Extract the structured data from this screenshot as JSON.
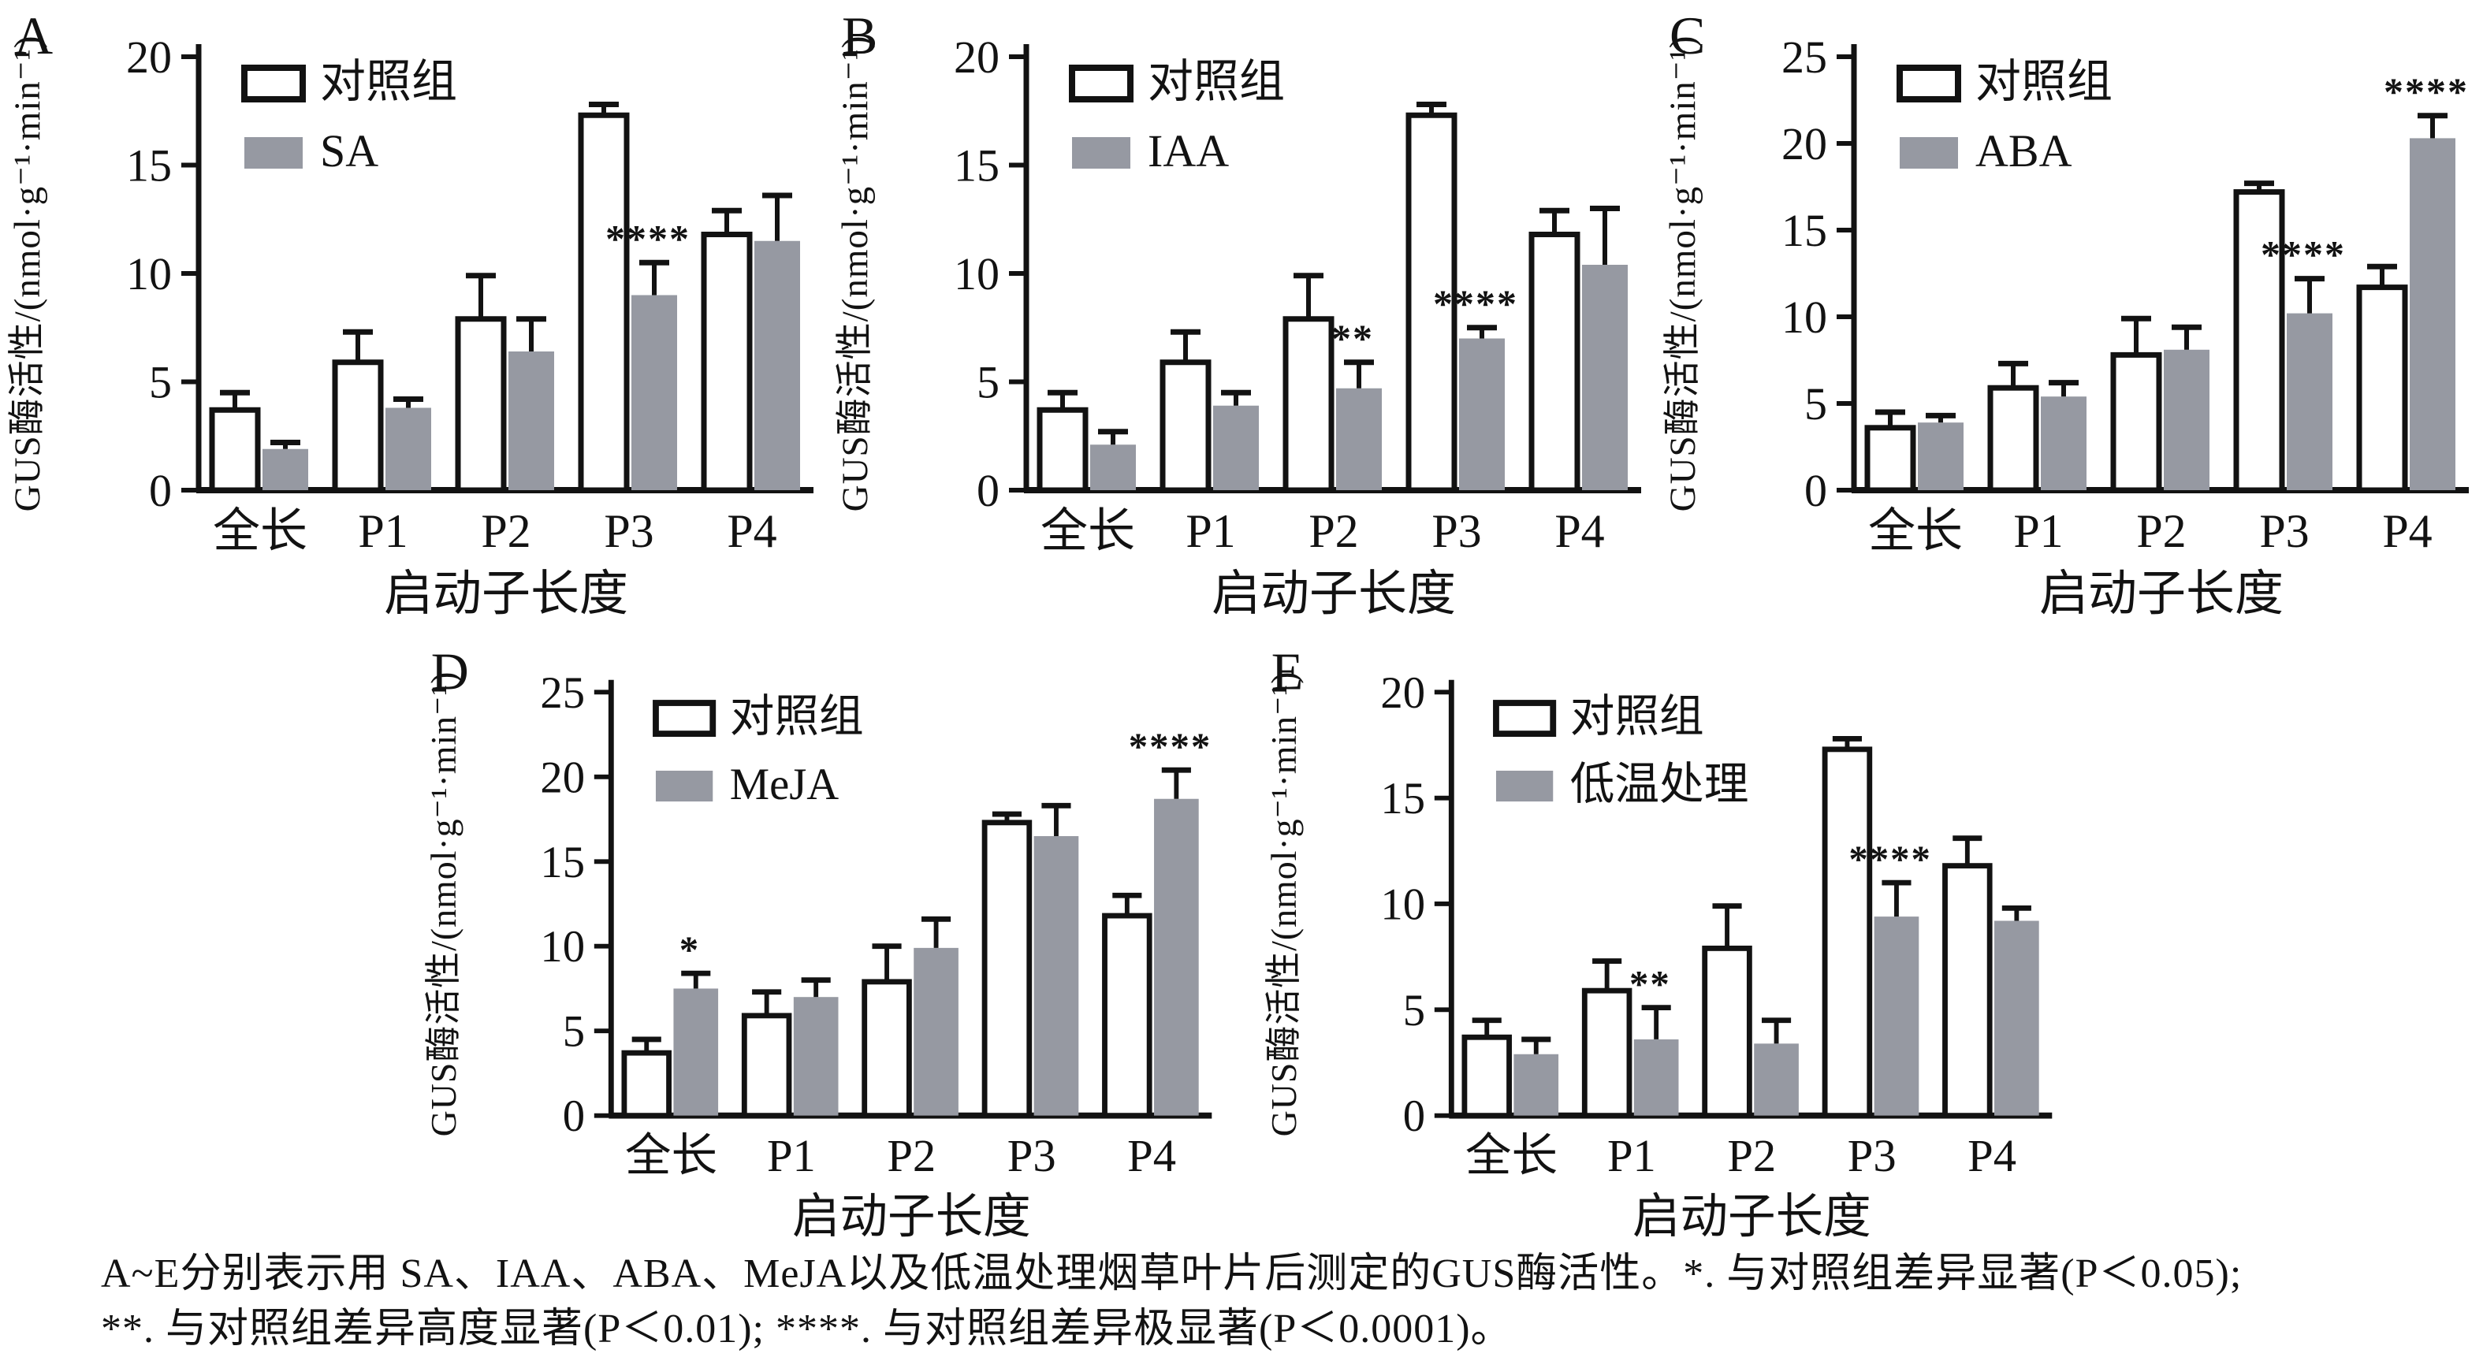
{
  "figure": {
    "caption_line1": "A~E分别表示用 SA、IAA、ABA、MeJA以及低温处理烟草叶片后测定的GUS酶活性。*. 与对照组差异显著(P＜0.05);",
    "caption_line2": "**. 与对照组差异高度显著(P＜0.01);  ****. 与对照组差异极显著(P＜0.0001)。"
  },
  "colors": {
    "ink": "#121212",
    "control_fill": "#ffffff",
    "treatment_fill": "#9699a2"
  },
  "chart_data": [
    {
      "type": "bar",
      "panel": "A",
      "categories": [
        "全长",
        "P1",
        "P2",
        "P3",
        "P4"
      ],
      "xlabel": "启动子长度",
      "ylabel": "GUS酶活性/(nmol·g⁻¹·min⁻¹)",
      "ylim": [
        0,
        20
      ],
      "ytick_step": 5,
      "grid": false,
      "legend_position": "top-left-inside",
      "series": [
        {
          "name": "对照组",
          "role": "control",
          "values": [
            3.7,
            5.9,
            7.9,
            17.3,
            11.8
          ],
          "errors": [
            0.8,
            1.4,
            2.0,
            0.5,
            1.1
          ],
          "significance": [
            "",
            "",
            "",
            "",
            ""
          ]
        },
        {
          "name": "SA",
          "role": "treatment",
          "values": [
            1.9,
            3.8,
            6.4,
            9.0,
            11.5
          ],
          "errors": [
            0.3,
            0.4,
            1.5,
            1.5,
            2.1
          ],
          "significance": [
            "",
            "",
            "",
            "****",
            ""
          ]
        }
      ]
    },
    {
      "type": "bar",
      "panel": "B",
      "categories": [
        "全长",
        "P1",
        "P2",
        "P3",
        "P4"
      ],
      "xlabel": "启动子长度",
      "ylabel": "GUS酶活性/(nmol·g⁻¹·min⁻¹)",
      "ylim": [
        0,
        20
      ],
      "ytick_step": 5,
      "grid": false,
      "legend_position": "top-left-inside",
      "series": [
        {
          "name": "对照组",
          "role": "control",
          "values": [
            3.7,
            5.9,
            7.9,
            17.3,
            11.8
          ],
          "errors": [
            0.8,
            1.4,
            2.0,
            0.5,
            1.1
          ],
          "significance": [
            "",
            "",
            "",
            "",
            ""
          ]
        },
        {
          "name": "IAA",
          "role": "treatment",
          "values": [
            2.1,
            3.9,
            4.7,
            7.0,
            10.4
          ],
          "errors": [
            0.6,
            0.6,
            1.2,
            0.5,
            2.6
          ],
          "significance": [
            "",
            "",
            "**",
            "****",
            ""
          ]
        }
      ]
    },
    {
      "type": "bar",
      "panel": "C",
      "categories": [
        "全长",
        "P1",
        "P2",
        "P3",
        "P4"
      ],
      "xlabel": "启动子长度",
      "ylabel": "GUS酶活性/(nmol·g⁻¹·min⁻¹)",
      "ylim": [
        0,
        25
      ],
      "ytick_step": 5,
      "grid": false,
      "legend_position": "top-left-inside",
      "series": [
        {
          "name": "对照组",
          "role": "control",
          "values": [
            3.6,
            5.9,
            7.8,
            17.2,
            11.7
          ],
          "errors": [
            0.9,
            1.4,
            2.1,
            0.5,
            1.2
          ],
          "significance": [
            "",
            "",
            "",
            "",
            ""
          ]
        },
        {
          "name": "ABA",
          "role": "treatment",
          "values": [
            3.9,
            5.4,
            8.1,
            10.2,
            20.3
          ],
          "errors": [
            0.4,
            0.8,
            1.3,
            2.0,
            1.3
          ],
          "significance": [
            "",
            "",
            "",
            "****",
            "****"
          ]
        }
      ]
    },
    {
      "type": "bar",
      "panel": "D",
      "categories": [
        "全长",
        "P1",
        "P2",
        "P3",
        "P4"
      ],
      "xlabel": "启动子长度",
      "ylabel": "GUS酶活性/(nmol·g⁻¹·min⁻¹)",
      "ylim": [
        0,
        25
      ],
      "ytick_step": 5,
      "grid": false,
      "legend_position": "top-left-inside",
      "series": [
        {
          "name": "对照组",
          "role": "control",
          "values": [
            3.7,
            5.9,
            7.9,
            17.3,
            11.8
          ],
          "errors": [
            0.8,
            1.4,
            2.1,
            0.5,
            1.2
          ],
          "significance": [
            "",
            "",
            "",
            "",
            ""
          ]
        },
        {
          "name": "MeJA",
          "role": "treatment",
          "values": [
            7.5,
            7.0,
            9.9,
            16.5,
            18.7
          ],
          "errors": [
            0.9,
            1.0,
            1.7,
            1.8,
            1.7
          ],
          "significance": [
            "*",
            "",
            "",
            "",
            "****"
          ]
        }
      ]
    },
    {
      "type": "bar",
      "panel": "E",
      "categories": [
        "全长",
        "P1",
        "P2",
        "P3",
        "P4"
      ],
      "xlabel": "启动子长度",
      "ylabel": "GUS酶活性/(nmol·g⁻¹·min⁻¹)",
      "ylim": [
        0,
        20
      ],
      "ytick_step": 5,
      "grid": false,
      "legend_position": "top-left-inside",
      "series": [
        {
          "name": "对照组",
          "role": "control",
          "values": [
            3.7,
            5.9,
            7.9,
            17.3,
            11.8
          ],
          "errors": [
            0.8,
            1.4,
            2.0,
            0.5,
            1.3
          ],
          "significance": [
            "",
            "",
            "",
            "",
            ""
          ]
        },
        {
          "name": "低温处理",
          "role": "treatment",
          "values": [
            2.9,
            3.6,
            3.4,
            9.4,
            9.2
          ],
          "errors": [
            0.7,
            1.5,
            1.1,
            1.6,
            0.6
          ],
          "significance": [
            "",
            "**",
            "",
            "****",
            ""
          ]
        }
      ]
    }
  ]
}
